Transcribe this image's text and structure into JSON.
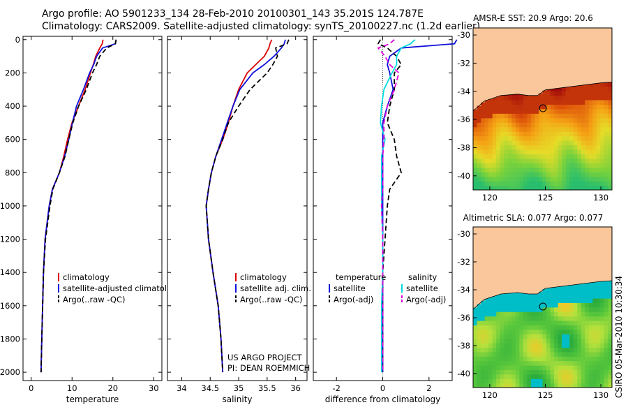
{
  "header": {
    "line1": "Argo profile: AO 5901233_134 28-Feb-2010 20100301_143 35.201S 124.787E",
    "line2": "Climatology: CARS2009. Satellite-adjusted climatology: synTS_20100227.nc (1.2d earlier)"
  },
  "colors": {
    "red": "#dd0000",
    "blue": "#1010dd",
    "black": "#000000",
    "cyan": "#00dddd",
    "magenta": "#dd00dd",
    "land": "#f9c79b",
    "frame": "#000000"
  },
  "chart_data": [
    {
      "id": "temperature",
      "type": "line",
      "xlabel": "temperature",
      "ylabel": "",
      "xlim": [
        -2,
        32
      ],
      "ylim": [
        2050,
        -20
      ],
      "xticks": [
        0,
        10,
        20,
        30
      ],
      "yticks": [
        0,
        200,
        400,
        600,
        800,
        1000,
        1200,
        1400,
        1600,
        1800,
        2000
      ],
      "depth": [
        0,
        25,
        50,
        100,
        150,
        200,
        300,
        400,
        500,
        600,
        700,
        800,
        900,
        1000,
        1200,
        1400,
        1600,
        1800,
        2000
      ],
      "series": [
        {
          "name": "climatology",
          "color": "red",
          "dash": "",
          "values": [
            17.6,
            17.4,
            16.8,
            15.8,
            15.2,
            14.5,
            13.2,
            11.6,
            10.0,
            8.9,
            8.0,
            6.9,
            5.2,
            4.4,
            3.4,
            3.0,
            2.8,
            2.6,
            2.4
          ]
        },
        {
          "name": "satellite-adjusted climatology",
          "color": "blue",
          "dash": "",
          "values": [
            20.8,
            20.6,
            17.5,
            16.0,
            15.3,
            14.3,
            12.8,
            11.1,
            10.1,
            9.2,
            8.2,
            6.9,
            5.2,
            4.4,
            3.4,
            3.0,
            2.8,
            2.6,
            2.4
          ]
        },
        {
          "name": "Argo(..raw -QC)",
          "color": "black",
          "dash": "7,4",
          "values": [
            20.8,
            20.6,
            18.5,
            16.8,
            16.0,
            15.0,
            13.5,
            11.6,
            10.2,
            9.2,
            8.3,
            6.9,
            5.3,
            4.6,
            3.5,
            3.0,
            2.8,
            2.6,
            2.4
          ]
        }
      ],
      "legend": {
        "position": "lower-right"
      }
    },
    {
      "id": "salinity",
      "type": "line",
      "xlabel": "salinity",
      "ylabel": "",
      "xlim": [
        33.75,
        36.2
      ],
      "ylim": [
        2050,
        -20
      ],
      "xticks": [
        34,
        34.5,
        35,
        35.5,
        36
      ],
      "xtick_labels": [
        "34",
        "34.5",
        "35",
        "35.5",
        "36"
      ],
      "depth": [
        0,
        25,
        50,
        100,
        150,
        200,
        300,
        400,
        500,
        600,
        700,
        800,
        900,
        1000,
        1200,
        1400,
        1600,
        1800,
        2000
      ],
      "series": [
        {
          "name": "climatology",
          "color": "red",
          "dash": "",
          "values": [
            35.58,
            35.55,
            35.53,
            35.45,
            35.3,
            35.15,
            35.0,
            34.9,
            34.82,
            34.72,
            34.6,
            34.52,
            34.47,
            34.43,
            34.47,
            34.55,
            34.64,
            34.69,
            34.72
          ]
        },
        {
          "name": "satellite adj. clim.",
          "color": "blue",
          "dash": "",
          "values": [
            35.82,
            35.8,
            35.75,
            35.62,
            35.45,
            35.25,
            35.02,
            34.9,
            34.8,
            34.7,
            34.6,
            34.52,
            34.47,
            34.43,
            34.47,
            34.55,
            34.64,
            34.69,
            34.72
          ]
        },
        {
          "name": "Argo(..raw -QC)",
          "color": "black",
          "dash": "7,4",
          "values": [
            35.88,
            35.85,
            35.65,
            35.68,
            35.6,
            35.5,
            35.2,
            35.0,
            34.82,
            34.72,
            34.6,
            34.52,
            34.47,
            34.43,
            34.47,
            34.55,
            34.64,
            34.69,
            34.72
          ]
        }
      ],
      "annotations": [
        "US ARGO PROJECT",
        "PI: DEAN ROEMMICH"
      ],
      "legend": {
        "position": "lower-right"
      }
    },
    {
      "id": "difference",
      "type": "line",
      "xlabel": "difference from climatology",
      "ylabel": "",
      "xlim": [
        -3,
        3
      ],
      "ylim": [
        2050,
        -20
      ],
      "xticks": [
        -2,
        0,
        2
      ],
      "xtick_labels": [
        "-2",
        "0",
        "2"
      ],
      "depth": [
        0,
        25,
        50,
        100,
        150,
        200,
        300,
        400,
        500,
        600,
        700,
        800,
        900,
        1000,
        1200,
        1400,
        1600,
        1800,
        2000
      ],
      "series": [
        {
          "name": "satellite",
          "group": "temperature",
          "color": "blue",
          "dash": "",
          "values": [
            3.2,
            3.1,
            0.8,
            0.3,
            0.2,
            0.3,
            0.45,
            0.2,
            0.0,
            0.0,
            0.0,
            0.0,
            0.0,
            0.0,
            0.0,
            0.0,
            0.0,
            0.0,
            0.0
          ]
        },
        {
          "name": "Argo(-adj)",
          "group": "temperature",
          "color": "black",
          "dash": "7,4",
          "values": [
            -0.1,
            -0.2,
            0.2,
            0.6,
            0.8,
            0.5,
            0.5,
            0.3,
            0.2,
            0.5,
            0.6,
            0.8,
            0.3,
            0.2,
            0.1,
            0.0,
            0.0,
            0.0,
            0.0
          ]
        },
        {
          "name": "satellite",
          "group": "salinity",
          "color": "cyan",
          "dash": "",
          "values": [
            1.4,
            1.2,
            0.8,
            0.6,
            0.6,
            0.4,
            0.05,
            -0.05,
            -0.1,
            0.1,
            -0.05,
            -0.05,
            -0.05,
            -0.05,
            0.0,
            0.0,
            -0.05,
            -0.05,
            -0.05
          ]
        },
        {
          "name": "Argo(-adj)",
          "group": "salinity",
          "color": "magenta",
          "dash": "7,4",
          "values": [
            0.5,
            0.3,
            -0.2,
            0.1,
            0.3,
            0.7,
            0.5,
            0.2,
            0.05,
            0.05,
            0.0,
            0.0,
            0.0,
            -0.05,
            0.0,
            0.0,
            0.0,
            0.0,
            0.0
          ]
        }
      ],
      "legend": {
        "position": "lower",
        "group_titles": [
          "temperature",
          "salinity"
        ]
      }
    },
    {
      "id": "sst_map",
      "type": "heatmap",
      "title": "AMSR-E SST: 20.9 Argo: 20.6",
      "xlabel": "",
      "ylabel": "",
      "xlim": [
        118.5,
        131
      ],
      "ylim": [
        -41,
        -29.5
      ],
      "xticks": [
        120,
        125,
        130
      ],
      "yticks": [
        -30,
        -32,
        -34,
        -36,
        -38,
        -40
      ],
      "argo_position": {
        "lon": 124.787,
        "lat": -35.201
      },
      "coast": {
        "lon": [
          118.5,
          119.5,
          121,
          122.5,
          123.5,
          124.3,
          125,
          126,
          127,
          128,
          129,
          130,
          131
        ],
        "lat": [
          -35.4,
          -34.7,
          -34.3,
          -34.2,
          -34.3,
          -34.3,
          -33.9,
          -33.8,
          -33.7,
          -33.6,
          -33.5,
          -33.4,
          -33.35
        ]
      },
      "colormap": "sst"
    },
    {
      "id": "sla_map",
      "type": "heatmap",
      "title": "Altimetric SLA: 0.077 Argo: 0.077",
      "xlabel": "",
      "ylabel": "",
      "xlim": [
        118.5,
        131
      ],
      "ylim": [
        -41,
        -29.5
      ],
      "xticks": [
        120,
        125,
        130
      ],
      "yticks": [
        -30,
        -32,
        -34,
        -36,
        -38,
        -40
      ],
      "argo_position": {
        "lon": 124.787,
        "lat": -35.201
      },
      "coast": {
        "lon": [
          118.5,
          119.5,
          121,
          122.5,
          123.5,
          124.3,
          125,
          126,
          127,
          128,
          129,
          130,
          131
        ],
        "lat": [
          -35.4,
          -34.7,
          -34.3,
          -34.2,
          -34.3,
          -34.3,
          -33.9,
          -33.8,
          -33.7,
          -33.6,
          -33.5,
          -33.4,
          -33.35
        ]
      },
      "colormap": "sla"
    }
  ],
  "footer": {
    "credit": "CSIRO 05-Mar-2010 10:30:34"
  }
}
